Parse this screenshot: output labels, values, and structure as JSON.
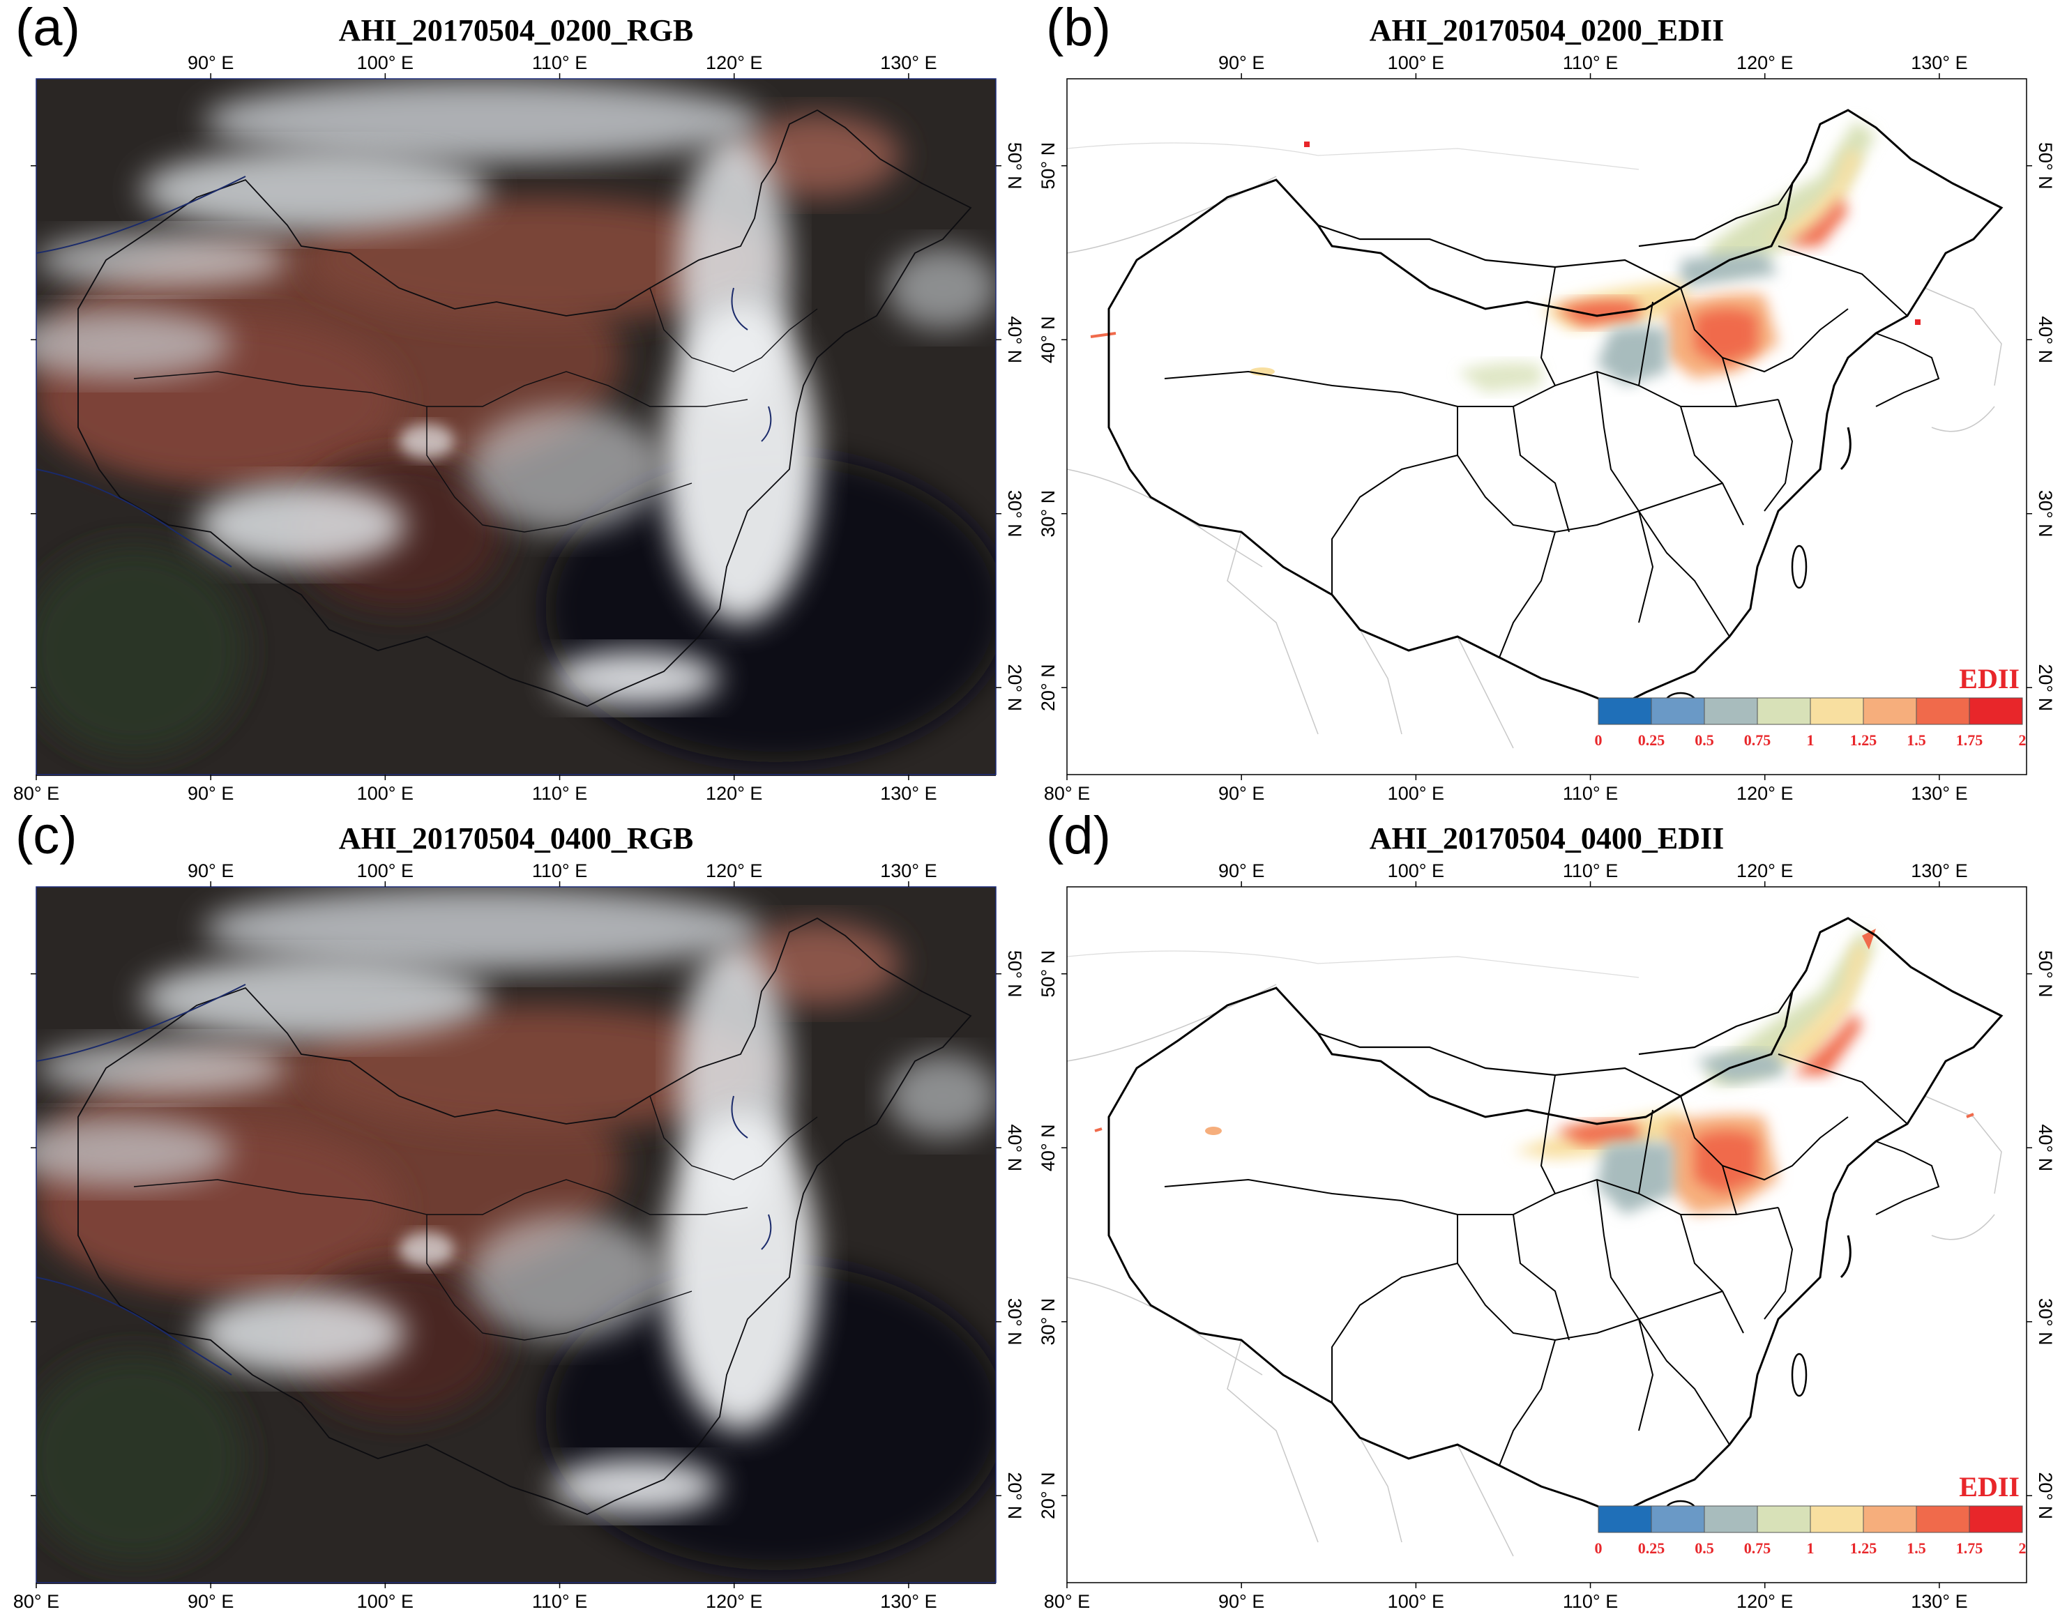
{
  "figure": {
    "lon_ticks": [
      "90° E",
      "100° E",
      "110° E",
      "120° E",
      "130° E"
    ],
    "lon_ticks_bottom": [
      "80° E",
      "90° E",
      "100° E",
      "110° E",
      "120° E",
      "130° E"
    ],
    "lat_ticks": [
      "20° N",
      "30° N",
      "40° N",
      "50° N"
    ],
    "lon_range": [
      80,
      135
    ],
    "lat_range": [
      15,
      55
    ]
  },
  "panels": [
    {
      "letter": "(a)",
      "title": "AHI_20170504_0200_RGB",
      "kind": "rgb"
    },
    {
      "letter": "(b)",
      "title": "AHI_20170504_0200_EDII",
      "kind": "edii"
    },
    {
      "letter": "(c)",
      "title": "AHI_20170504_0400_RGB",
      "kind": "rgb"
    },
    {
      "letter": "(d)",
      "title": "AHI_20170504_0400_EDII",
      "kind": "edii"
    }
  ],
  "colorbar": {
    "title": "EDII",
    "labels": [
      "0",
      "0.25",
      "0.5",
      "0.75",
      "1",
      "1.25",
      "1.5",
      "1.75",
      "2"
    ],
    "colors": [
      "#1f6fb8",
      "#6a99c6",
      "#a8bcbd",
      "#d8e1b8",
      "#f8dfa0",
      "#f6ae7c",
      "#f06a4b",
      "#e8262a"
    ]
  }
}
